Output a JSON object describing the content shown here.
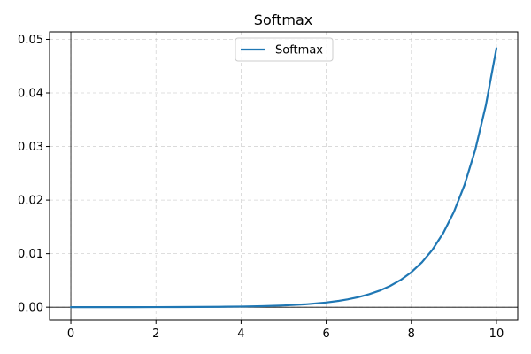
{
  "chart_data": {
    "type": "line",
    "title": "Softmax",
    "xlabel": "",
    "ylabel": "",
    "xlim": [
      -0.5,
      10.5
    ],
    "ylim": [
      -0.00245,
      0.0514
    ],
    "x_ticks": [
      0,
      2,
      4,
      6,
      8,
      10
    ],
    "y_ticks": [
      0.0,
      0.01,
      0.02,
      0.03,
      0.04,
      0.05
    ],
    "x_tick_labels": [
      "0",
      "2",
      "4",
      "6",
      "8",
      "10"
    ],
    "y_tick_labels": [
      "0.00",
      "0.01",
      "0.02",
      "0.03",
      "0.04",
      "0.05"
    ],
    "grid": true,
    "reference_lines": {
      "x": 0,
      "y": 0
    },
    "legend": {
      "position": "upper center"
    },
    "series": [
      {
        "name": "Softmax",
        "color": "#1f77b4",
        "x": [
          0,
          0.5,
          1,
          1.5,
          2,
          2.5,
          3,
          3.5,
          4,
          4.5,
          5,
          5.5,
          6,
          6.25,
          6.5,
          6.75,
          7,
          7.25,
          7.5,
          7.75,
          8,
          8.25,
          8.5,
          8.75,
          9,
          9.25,
          9.5,
          9.75,
          10
        ],
        "y": [
          2.2e-06,
          3.6e-06,
          6e-06,
          9.9e-06,
          1.63e-05,
          2.68e-05,
          4.42e-05,
          7.28e-05,
          0.00012,
          0.000198,
          0.000327,
          0.000539,
          0.000888,
          0.00114,
          0.00146,
          0.00187,
          0.00241,
          0.00309,
          0.00397,
          0.00509,
          0.00654,
          0.0084,
          0.01078,
          0.01384,
          0.01778,
          0.02283,
          0.02931,
          0.03764,
          0.04833
        ]
      }
    ]
  }
}
